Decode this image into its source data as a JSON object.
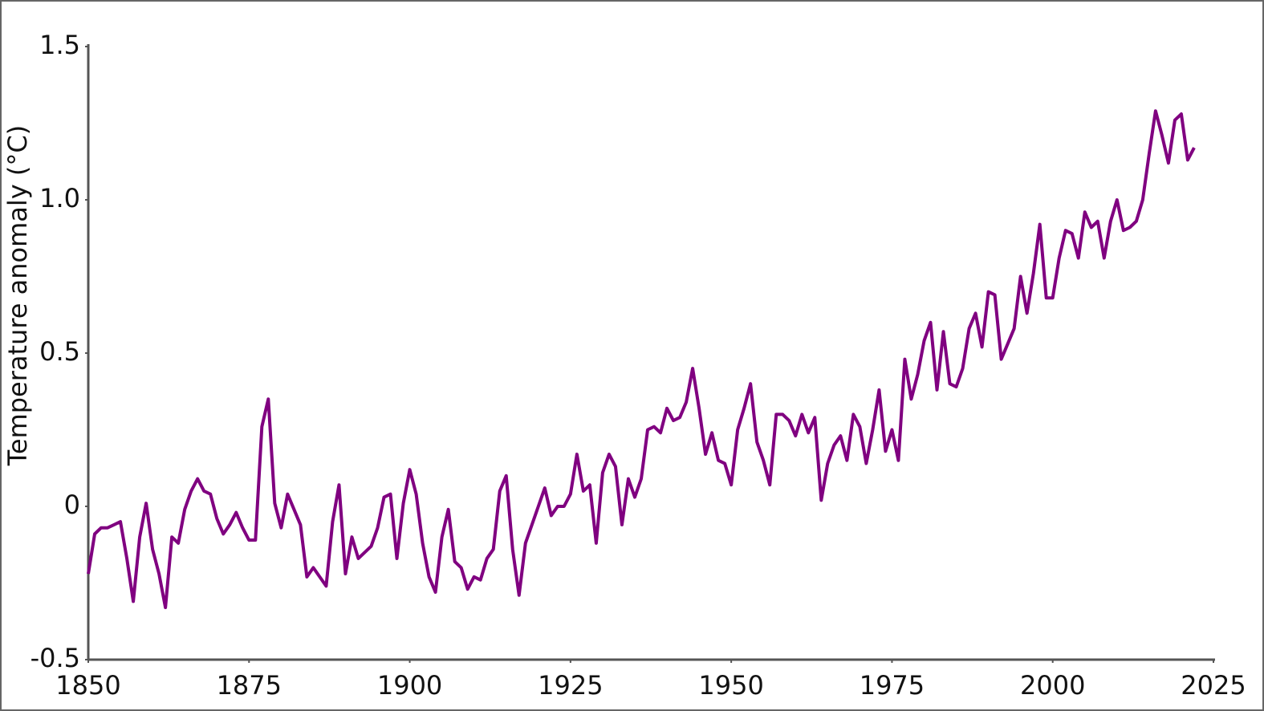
{
  "chart_data": {
    "type": "line",
    "y_label": "Temperature anomaly (°C)",
    "xlim": [
      1850,
      2025
    ],
    "xticks": [
      1850,
      1875,
      1900,
      1925,
      1950,
      1975,
      2000,
      2025
    ],
    "ylim": [
      -0.5,
      1.5
    ],
    "yticks": [
      -0.5,
      0,
      0.5,
      {
        "value": 1,
        "label": "1.0"
      },
      1.5
    ],
    "grid": false,
    "x": [
      1850,
      1851,
      1852,
      1853,
      1854,
      1855,
      1856,
      1857,
      1858,
      1859,
      1860,
      1861,
      1862,
      1863,
      1864,
      1865,
      1866,
      1867,
      1868,
      1869,
      1870,
      1871,
      1872,
      1873,
      1874,
      1875,
      1876,
      1877,
      1878,
      1879,
      1880,
      1881,
      1882,
      1883,
      1884,
      1885,
      1886,
      1887,
      1888,
      1889,
      1890,
      1891,
      1892,
      1893,
      1894,
      1895,
      1896,
      1897,
      1898,
      1899,
      1900,
      1901,
      1902,
      1903,
      1904,
      1905,
      1906,
      1907,
      1908,
      1909,
      1910,
      1911,
      1912,
      1913,
      1914,
      1915,
      1916,
      1917,
      1918,
      1919,
      1920,
      1921,
      1922,
      1923,
      1924,
      1925,
      1926,
      1927,
      1928,
      1929,
      1930,
      1931,
      1932,
      1933,
      1934,
      1935,
      1936,
      1937,
      1938,
      1939,
      1940,
      1941,
      1942,
      1943,
      1944,
      1945,
      1946,
      1947,
      1948,
      1949,
      1950,
      1951,
      1952,
      1953,
      1954,
      1955,
      1956,
      1957,
      1958,
      1959,
      1960,
      1961,
      1962,
      1963,
      1964,
      1965,
      1966,
      1967,
      1968,
      1969,
      1970,
      1971,
      1972,
      1973,
      1974,
      1975,
      1976,
      1977,
      1978,
      1979,
      1980,
      1981,
      1982,
      1983,
      1984,
      1985,
      1986,
      1987,
      1988,
      1989,
      1990,
      1991,
      1992,
      1993,
      1994,
      1995,
      1996,
      1997,
      1998,
      1999,
      2000,
      2001,
      2002,
      2003,
      2004,
      2005,
      2006,
      2007,
      2008,
      2009,
      2010,
      2011,
      2012,
      2013,
      2014,
      2015,
      2016,
      2017,
      2018,
      2019,
      2020,
      2021,
      2022
    ],
    "series": [
      {
        "color": "#800080",
        "values": [
          -0.22,
          -0.09,
          -0.07,
          -0.07,
          -0.06,
          -0.05,
          -0.17,
          -0.31,
          -0.1,
          0.01,
          -0.14,
          -0.22,
          -0.33,
          -0.1,
          -0.12,
          -0.01,
          0.05,
          0.09,
          0.05,
          0.04,
          -0.04,
          -0.09,
          -0.06,
          -0.02,
          -0.07,
          -0.11,
          -0.11,
          0.26,
          0.35,
          0.01,
          -0.07,
          0.04,
          -0.01,
          -0.06,
          -0.23,
          -0.2,
          -0.23,
          -0.26,
          -0.05,
          0.07,
          -0.22,
          -0.1,
          -0.17,
          -0.15,
          -0.13,
          -0.07,
          0.03,
          0.04,
          -0.17,
          0.01,
          0.12,
          0.04,
          -0.12,
          -0.23,
          -0.28,
          -0.1,
          -0.01,
          -0.18,
          -0.2,
          -0.27,
          -0.23,
          -0.24,
          -0.17,
          -0.14,
          0.05,
          0.1,
          -0.14,
          -0.29,
          -0.12,
          -0.06,
          0.0,
          0.06,
          -0.03,
          0.0,
          0.0,
          0.04,
          0.17,
          0.05,
          0.07,
          -0.12,
          0.11,
          0.17,
          0.13,
          -0.06,
          0.09,
          0.03,
          0.09,
          0.25,
          0.26,
          0.24,
          0.32,
          0.28,
          0.29,
          0.34,
          0.45,
          0.32,
          0.17,
          0.24,
          0.15,
          0.14,
          0.07,
          0.25,
          0.32,
          0.4,
          0.21,
          0.15,
          0.07,
          0.3,
          0.3,
          0.28,
          0.23,
          0.3,
          0.24,
          0.29,
          0.02,
          0.14,
          0.2,
          0.23,
          0.15,
          0.3,
          0.26,
          0.14,
          0.25,
          0.38,
          0.18,
          0.25,
          0.15,
          0.48,
          0.35,
          0.43,
          0.54,
          0.6,
          0.38,
          0.57,
          0.4,
          0.39,
          0.45,
          0.58,
          0.63,
          0.52,
          0.7,
          0.69,
          0.48,
          0.53,
          0.58,
          0.75,
          0.63,
          0.76,
          0.92,
          0.68,
          0.68,
          0.81,
          0.9,
          0.89,
          0.81,
          0.96,
          0.91,
          0.93,
          0.81,
          0.93,
          1.0,
          0.9,
          0.91,
          0.93,
          1.0,
          1.15,
          1.29,
          1.21,
          1.12,
          1.26,
          1.28,
          1.13,
          1.17
        ]
      }
    ]
  }
}
